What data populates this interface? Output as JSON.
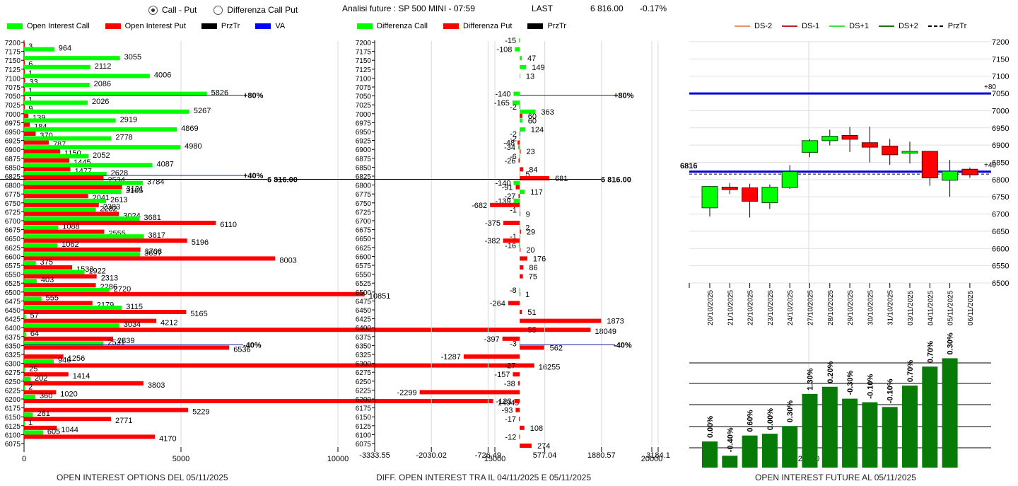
{
  "header": {
    "radio_options": [
      {
        "label": "Call - Put",
        "selected": true
      },
      {
        "label": "Differenza Call Put",
        "selected": false
      }
    ],
    "title": "Analisi future : SP 500 MINI - 07:59",
    "last_label": "LAST",
    "last_value": "6 816.00",
    "change": "-0.17%"
  },
  "colors": {
    "call": "#00ff00",
    "put": "#ff0000",
    "przTr": "#000000",
    "va": "#0000ff",
    "ds_minus2": "#e8906a",
    "ds_minus1": "#c02020",
    "ds_plus1": "#40e040",
    "ds_plus2": "#207020",
    "oi_bar": "#087a08"
  },
  "chart_data": [
    {
      "type": "bar",
      "orientation": "horizontal",
      "title": "OPEN INTEREST OPTIONS DEL 05/11/2025",
      "legend": [
        "Open Interest Call",
        "Open Interest Put",
        "PrzTr",
        "VA"
      ],
      "categories": [
        7200,
        7175,
        7150,
        7125,
        7100,
        7075,
        7050,
        7025,
        7000,
        6975,
        6950,
        6925,
        6900,
        6875,
        6850,
        6825,
        6800,
        6775,
        6750,
        6725,
        6700,
        6675,
        6650,
        6625,
        6600,
        6575,
        6550,
        6525,
        6500,
        6475,
        6450,
        6425,
        6400,
        6375,
        6350,
        6325,
        6300,
        6275,
        6250,
        6225,
        6200,
        6175,
        6150,
        6125,
        6100,
        6075
      ],
      "series": [
        {
          "name": "Open Interest Call",
          "values": [
            0,
            964,
            3055,
            2112,
            4006,
            2086,
            5826,
            2026,
            5267,
            2919,
            4869,
            2778,
            4980,
            2052,
            4087,
            2628,
            3784,
            3105,
            2613,
            2282,
            3681,
            1088,
            3817,
            1062,
            3697,
            375,
            1922,
            403,
            2720,
            555,
            3115,
            57,
            3034,
            64,
            2531,
            0,
            946,
            25,
            202,
            2,
            360,
            0,
            281,
            1,
            605,
            0
          ]
        },
        {
          "name": "Open Interest Put",
          "values": [
            3,
            0,
            6,
            1,
            33,
            1,
            1,
            9,
            139,
            184,
            370,
            787,
            1150,
            1445,
            1477,
            2534,
            3121,
            2041,
            2383,
            3024,
            6110,
            2555,
            5196,
            3708,
            8003,
            1533,
            2313,
            2286,
            10851,
            2179,
            5165,
            4212,
            18049,
            2839,
            6536,
            1256,
            16255,
            1414,
            3803,
            1020,
            14949,
            5229,
            2771,
            1044,
            4170,
            0
          ]
        }
      ],
      "xlim": [
        0,
        29000
      ],
      "xticks": [
        "0",
        "5000",
        "10000",
        "15000",
        "20000",
        "25000"
      ],
      "annotations": [
        {
          "strike": 7050,
          "label": "+80%"
        },
        {
          "strike": 6825,
          "label": "+40%"
        },
        {
          "strike": 6350,
          "label": "-40%"
        }
      ],
      "przTr": {
        "value": 6816,
        "label": "6 816.00"
      }
    },
    {
      "type": "bar",
      "orientation": "horizontal",
      "title": "DIFF. OPEN INTEREST TRA IL 04/11/2025 E 05/11/2025",
      "legend": [
        "Differenza Call",
        "Differenza Put",
        "PrzTr"
      ],
      "categories": [
        7200,
        7175,
        7150,
        7125,
        7100,
        7075,
        7050,
        7025,
        7000,
        6975,
        6950,
        6925,
        6900,
        6875,
        6850,
        6825,
        6800,
        6775,
        6750,
        6725,
        6700,
        6675,
        6650,
        6625,
        6600,
        6575,
        6550,
        6525,
        6500,
        6475,
        6450,
        6425,
        6400,
        6375,
        6350,
        6325,
        6300,
        6275,
        6250,
        6225,
        6200,
        6175,
        6150,
        6125,
        6100,
        6075
      ],
      "series": [
        {
          "name": "Differenza Call",
          "values": [
            -15,
            -108,
            47,
            149,
            13,
            0,
            -140,
            -165,
            363,
            60,
            124,
            -2,
            -34,
            -6,
            0,
            5,
            -140,
            117,
            -139,
            -1,
            0,
            2,
            -1,
            -16,
            0,
            0,
            0,
            0,
            -8,
            0,
            0,
            0,
            0,
            0,
            -3,
            0,
            0,
            0,
            0,
            0,
            0,
            0,
            0,
            0,
            0,
            0
          ]
        },
        {
          "name": "Differenza Put",
          "values": [
            0,
            0,
            0,
            0,
            0,
            0,
            0,
            -2,
            60,
            0,
            -2,
            -48,
            23,
            -26,
            84,
            681,
            -91,
            -27,
            -682,
            9,
            -375,
            29,
            -382,
            20,
            176,
            86,
            75,
            0,
            1,
            -264,
            51,
            1873,
            55,
            -397,
            562,
            -1287,
            -27,
            -157,
            -38,
            -2299,
            -123,
            -93,
            -17,
            108,
            -12,
            274
          ]
        }
      ],
      "xlim": [
        -3333.55,
        3184.1
      ],
      "xticks": [
        "-3333.55",
        "-2030.02",
        "-726.49",
        "577.04",
        "1880.57",
        "3184.1"
      ],
      "annotations": [
        {
          "strike": 7050,
          "label": "+80%"
        },
        {
          "strike": 6350,
          "label": "-40%"
        }
      ],
      "przTr": {
        "value": 6816,
        "label": "6 816.00"
      }
    },
    {
      "type": "candlestick",
      "legend": [
        "DS-2",
        "DS-1",
        "DS+1",
        "DS+2",
        "PrzTr"
      ],
      "dates": [
        "20/10/2025",
        "21/10/2025",
        "22/10/2025",
        "23/10/2025",
        "24/10/2025",
        "27/10/2025",
        "28/10/2025",
        "29/10/2025",
        "30/10/2025",
        "31/10/2025",
        "03/11/2025",
        "04/11/2025",
        "05/11/2025",
        "06/11/2025"
      ],
      "candles": [
        {
          "open": 6718,
          "high": 6782,
          "low": 6693,
          "close": 6780,
          "color": "green"
        },
        {
          "open": 6778,
          "high": 6790,
          "low": 6758,
          "close": 6771,
          "color": "red"
        },
        {
          "open": 6776,
          "high": 6788,
          "low": 6690,
          "close": 6737,
          "color": "red"
        },
        {
          "open": 6733,
          "high": 6786,
          "low": 6715,
          "close": 6778,
          "color": "green"
        },
        {
          "open": 6777,
          "high": 6842,
          "low": 6773,
          "close": 6823,
          "color": "green"
        },
        {
          "open": 6879,
          "high": 6918,
          "low": 6865,
          "close": 6913,
          "color": "green"
        },
        {
          "open": 6913,
          "high": 6945,
          "low": 6899,
          "close": 6926,
          "color": "green"
        },
        {
          "open": 6928,
          "high": 6953,
          "low": 6880,
          "close": 6917,
          "color": "red"
        },
        {
          "open": 6907,
          "high": 6954,
          "low": 6850,
          "close": 6894,
          "color": "red"
        },
        {
          "open": 6897,
          "high": 6918,
          "low": 6843,
          "close": 6872,
          "color": "red"
        },
        {
          "open": 6877,
          "high": 6910,
          "low": 6847,
          "close": 6882,
          "color": "green"
        },
        {
          "open": 6882,
          "high": 6882,
          "low": 6782,
          "close": 6805,
          "color": "red"
        },
        {
          "open": 6798,
          "high": 6857,
          "low": 6750,
          "close": 6824,
          "color": "green"
        },
        {
          "open": 6830,
          "high": 6835,
          "low": 6805,
          "close": 6814,
          "color": "red"
        }
      ],
      "ylim": [
        6500,
        7200
      ],
      "yticks": [
        "7200",
        "7150",
        "7100",
        "7050",
        "7000",
        "6950",
        "6900",
        "6850",
        "6800",
        "6750",
        "6700",
        "6650",
        "6600",
        "6550",
        "6500"
      ],
      "hlines": [
        {
          "value": 7050,
          "label": "+80"
        },
        {
          "value": 6823,
          "label": "+40"
        }
      ],
      "przTr": {
        "value": 6816,
        "label": "6816"
      }
    },
    {
      "type": "bar",
      "title": "OPEN INTEREST FUTURE AL 05/11/2025",
      "categories": [
        "20/10/2025",
        "21/10/2025",
        "22/10/2025",
        "23/10/2025",
        "24/10/2025",
        "27/10/2025",
        "28/10/2025",
        "29/10/2025",
        "30/10/2025",
        "31/10/2025",
        "03/11/2025",
        "04/11/2025",
        "05/11/2025"
      ],
      "values": [
        22,
        10,
        27,
        28.5,
        35,
        62,
        68,
        58,
        55,
        51,
        69,
        85,
        92
      ],
      "labels": [
        "0.00%",
        "-0.40%",
        "0.60%",
        "0.00%",
        "0.30%",
        "1.30%",
        "0.20%",
        "-0.30%",
        "-0.10%",
        "-0.10%",
        "0.70%",
        "0.70%",
        "0.30%"
      ],
      "ylim": [
        0,
        100
      ]
    }
  ]
}
